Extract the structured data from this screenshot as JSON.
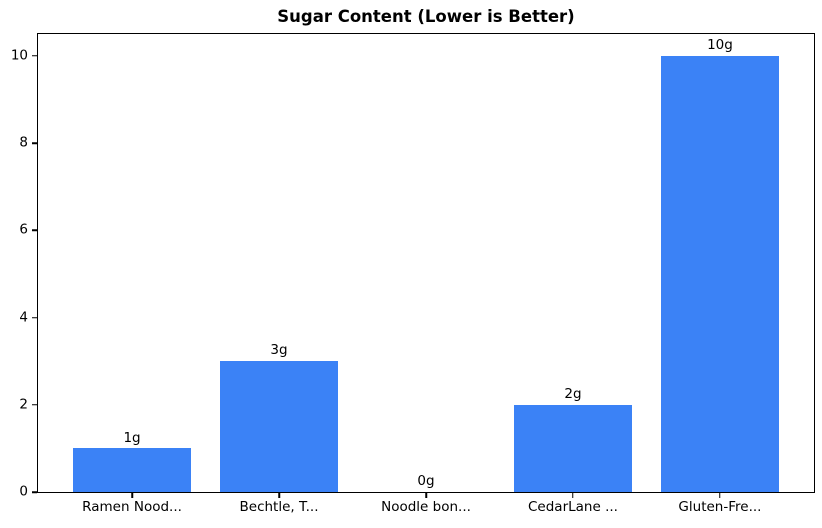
{
  "chart_data": {
    "type": "bar",
    "title": "Sugar Content (Lower is Better)",
    "categories": [
      "Ramen Nood...",
      "Bechtle, T...",
      "Noodle bon...",
      "CedarLane ...",
      "Gluten-Fre..."
    ],
    "values": [
      1,
      3,
      0,
      2,
      10
    ],
    "value_labels": [
      "1g",
      "3g",
      "0g",
      "2g",
      "10g"
    ],
    "xlabel": "",
    "ylabel": "",
    "yticks": [
      0,
      2,
      4,
      6,
      8,
      10
    ],
    "ylim": [
      0,
      10.5
    ],
    "xlim": [
      -0.64,
      4.64
    ],
    "bar_width_units": 0.8,
    "grid": false,
    "legend": null,
    "colors": {
      "bar": "#3b82f6",
      "text": "#000000",
      "frame": "#000000",
      "background": "#ffffff"
    }
  }
}
